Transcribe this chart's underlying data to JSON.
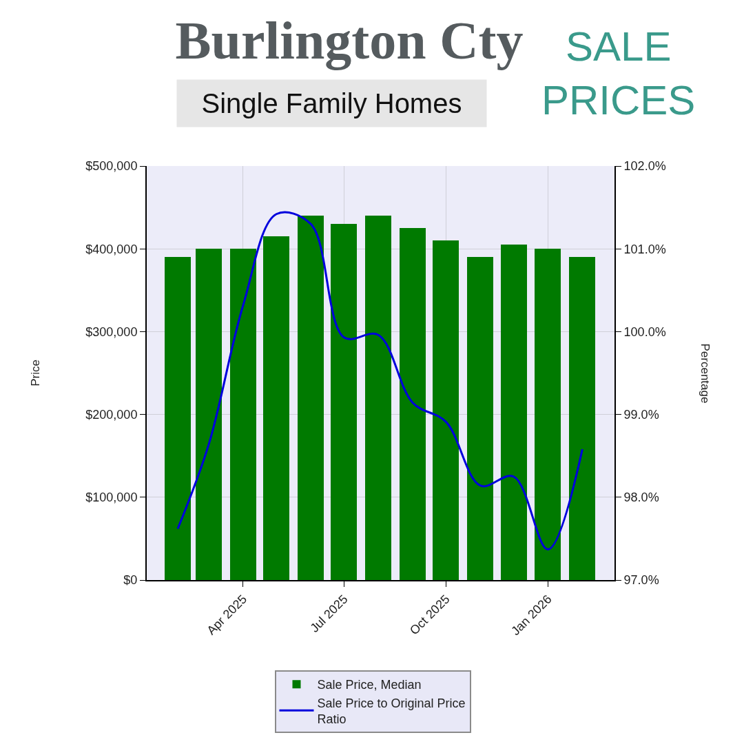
{
  "chart_data": {
    "type": "bar",
    "title": "Burlington Cty",
    "subtitle": "Single Family Homes",
    "annotations": [
      "SALE\nPRICES"
    ],
    "ylabel": "Price",
    "y2label": "Percentage",
    "x": [
      "2025-02",
      "2025-03",
      "2025-04",
      "2025-05",
      "2025-06",
      "2025-07",
      "2025-08",
      "2025-09",
      "2025-10",
      "2025-11",
      "2025-12",
      "2026-01",
      "2026-02"
    ],
    "series": [
      {
        "name": "Sale Price, Median",
        "color": "#007a00",
        "values": [
          390000,
          400000,
          400000,
          415000,
          440000,
          430000,
          440000,
          425000,
          410000,
          390000,
          405000,
          400000,
          390000
        ]
      },
      {
        "name": "Sale Price to Original Price Ratio",
        "type": "line",
        "axis": "y2",
        "color": "#0000dd",
        "values": [
          97.62,
          98.64,
          100.32,
          101.42,
          101.3,
          99.93,
          99.96,
          99.14,
          98.91,
          98.14,
          98.25,
          97.37,
          98.58
        ]
      }
    ],
    "xlim": [
      "2025-01-04",
      "2026-03-02"
    ],
    "xticks": [
      {
        "value": "2025-04",
        "label": "Apr 2025"
      },
      {
        "value": "2025-07",
        "label": "Jul 2025"
      },
      {
        "value": "2025-10",
        "label": "Oct 2025"
      },
      {
        "value": "2026-01",
        "label": "Jan 2026"
      }
    ],
    "ylim": [
      0,
      500000
    ],
    "yticks": [
      {
        "value": 0,
        "label": "$0"
      },
      {
        "value": 100000,
        "label": "$100,000"
      },
      {
        "value": 200000,
        "label": "$200,000"
      },
      {
        "value": 300000,
        "label": "$300,000"
      },
      {
        "value": 400000,
        "label": "$400,000"
      },
      {
        "value": 500000,
        "label": "$500,000"
      }
    ],
    "y2lim": [
      97,
      102
    ],
    "y2ticks": [
      {
        "value": 97,
        "label": "97.0%"
      },
      {
        "value": 98,
        "label": "98.0%"
      },
      {
        "value": 99,
        "label": "99.0%"
      },
      {
        "value": 100,
        "label": "100.0%"
      },
      {
        "value": 101,
        "label": "101.0%"
      },
      {
        "value": 102,
        "label": "102.0%"
      }
    ],
    "grid": true,
    "legend": "bottom"
  }
}
